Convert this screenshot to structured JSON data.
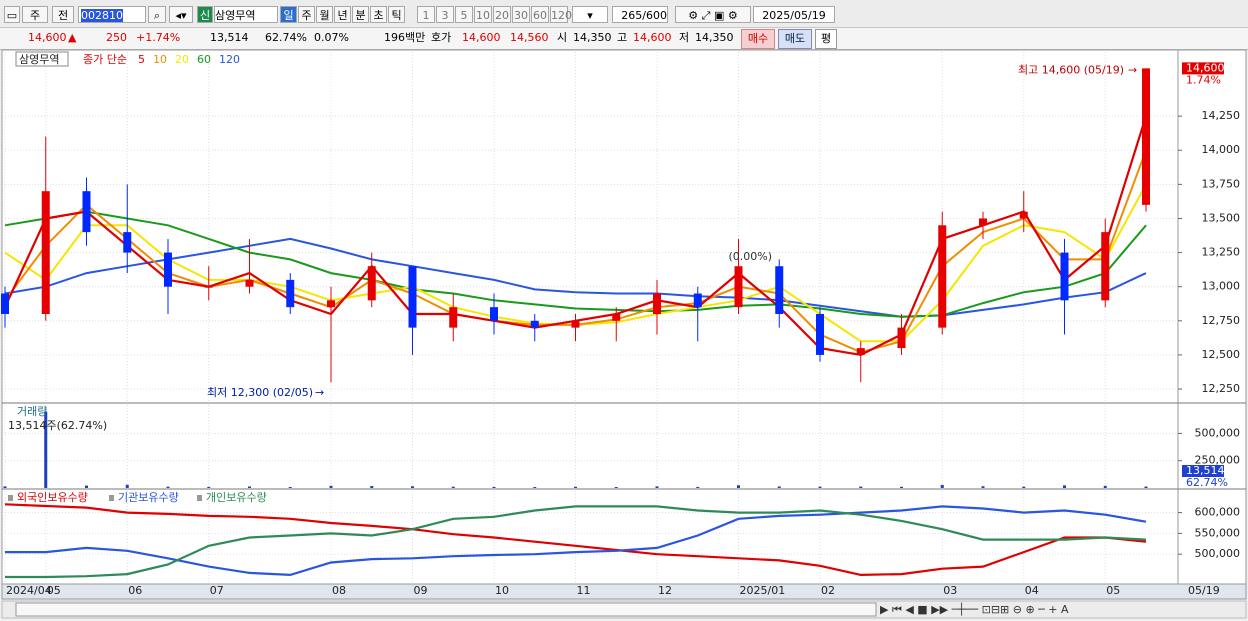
{
  "toolbar": {
    "market": "주",
    "prev": "전",
    "code": "002810",
    "tag": "신",
    "name": "삼영무역",
    "periods": [
      "일",
      "주",
      "월",
      "년",
      "분",
      "초",
      "틱"
    ],
    "units": [
      "1",
      "3",
      "5",
      "10",
      "20",
      "30",
      "60",
      "120"
    ],
    "count": "265",
    "total": "/600",
    "date": "2025/05/19"
  },
  "quote": {
    "price": "14,600",
    "change": "250",
    "change_pct": "+1.74%",
    "volume": "13,514",
    "volume_ratio": "62.74%",
    "turnover_pct": "0.07%",
    "amount": "196백만",
    "ask_label": "호가",
    "ask": "14,600",
    "bid": "14,560",
    "open_label": "시",
    "open": "14,350",
    "high_label": "고",
    "high": "14,600",
    "low_label": "저",
    "low": "14,350",
    "buy": "매수",
    "sell": "매도",
    "avg": "평"
  },
  "chart_data": [
    {
      "type": "candlestick",
      "title": "삼영무역",
      "ma_label": "종가 단순",
      "open": [
        12950,
        12800,
        13700,
        13400,
        13250,
        13000,
        13000,
        13050,
        12850,
        12900,
        13150,
        12700,
        12850,
        12750,
        12700,
        12750,
        12800,
        12950,
        12850,
        13150,
        12800,
        12500,
        12550,
        12700,
        13450,
        13500,
        13250,
        12900,
        13600
      ],
      "high": [
        13000,
        14100,
        13800,
        13750,
        13350,
        13150,
        13350,
        13100,
        13000,
        13250,
        13150,
        12950,
        12950,
        12800,
        12800,
        12850,
        13050,
        13000,
        13350,
        13200,
        12850,
        12600,
        12800,
        13550,
        13550,
        13700,
        13350,
        13500,
        14600
      ],
      "low": [
        12700,
        12750,
        13300,
        13100,
        12800,
        12900,
        12950,
        12800,
        12300,
        12850,
        12500,
        12600,
        12650,
        12600,
        12600,
        12600,
        12650,
        12600,
        12800,
        12700,
        12450,
        12300,
        12500,
        12650,
        13350,
        13400,
        12650,
        12850,
        13550
      ],
      "close": [
        12800,
        13700,
        13400,
        13250,
        13000,
        13000,
        13050,
        12850,
        12900,
        13150,
        12700,
        12850,
        12750,
        12700,
        12750,
        12800,
        12950,
        12850,
        13150,
        12800,
        12500,
        12550,
        12700,
        13450,
        13500,
        13550,
        12900,
        13400,
        14600
      ],
      "up_color": "#e60000",
      "down_color": "#0028ff",
      "series": [
        {
          "name": "5",
          "color": "#e00000",
          "values": [
            12850,
            13500,
            13550,
            13300,
            13050,
            13000,
            13100,
            12900,
            12800,
            13150,
            12800,
            12800,
            12750,
            12700,
            12750,
            12800,
            12900,
            12850,
            13100,
            12850,
            12550,
            12500,
            12650,
            13350,
            13450,
            13550,
            13050,
            13300,
            14250
          ]
        },
        {
          "name": "10",
          "color": "#f08c00",
          "values": [
            12900,
            13300,
            13600,
            13350,
            13100,
            13000,
            13050,
            12950,
            12850,
            13050,
            12950,
            12800,
            12750,
            12720,
            12720,
            12760,
            12850,
            12880,
            13000,
            12950,
            12650,
            12520,
            12600,
            13150,
            13400,
            13500,
            13200,
            13200,
            14000
          ]
        },
        {
          "name": "20",
          "color": "#f5e600",
          "values": [
            13250,
            13050,
            13450,
            13450,
            13200,
            13050,
            13050,
            13000,
            12900,
            12950,
            13000,
            12850,
            12780,
            12730,
            12720,
            12740,
            12800,
            12850,
            12900,
            13000,
            12800,
            12600,
            12600,
            12900,
            13300,
            13450,
            13400,
            13200,
            13750
          ]
        },
        {
          "name": "60",
          "color": "#1a9a1a",
          "values": [
            13450,
            13500,
            13550,
            13500,
            13450,
            13350,
            13250,
            13200,
            13100,
            13050,
            12980,
            12950,
            12900,
            12870,
            12840,
            12830,
            12820,
            12830,
            12860,
            12870,
            12840,
            12800,
            12780,
            12790,
            12880,
            12960,
            13000,
            13100,
            13450
          ]
        },
        {
          "name": "120",
          "color": "#2a55e0",
          "values": [
            12950,
            13000,
            13100,
            13150,
            13200,
            13250,
            13300,
            13350,
            13280,
            13200,
            13150,
            13100,
            13050,
            12980,
            12960,
            12950,
            12950,
            12930,
            12920,
            12900,
            12860,
            12820,
            12780,
            12790,
            12830,
            12870,
            12920,
            12960,
            13100
          ]
        }
      ],
      "ylim": [
        12155,
        14720
      ],
      "yticks": [
        {
          "value": 12250,
          "label": "12,250"
        },
        {
          "value": 12500,
          "label": "12,500"
        },
        {
          "value": 12750,
          "label": "12,750"
        },
        {
          "value": 13000,
          "label": "13,000"
        },
        {
          "value": 13250,
          "label": "13,250"
        },
        {
          "value": 13500,
          "label": "13,500"
        },
        {
          "value": 13750,
          "label": "13,750"
        },
        {
          "value": 14000,
          "label": "14,000"
        },
        {
          "value": 14250,
          "label": "14,250"
        }
      ],
      "grid": true,
      "high_note": "최고 14,600 (05/19)",
      "low_note": "최저 12,300 (02/05)",
      "mid_note": "(0.00%)",
      "current_label": "14,600",
      "current_change": "1.74%"
    },
    {
      "type": "bar",
      "title": "거래량",
      "subtitle": "13,514주(62.74%)",
      "color": "#1a3fc0",
      "values": [
        15000,
        700000,
        22000,
        30000,
        12000,
        10000,
        14000,
        9000,
        20000,
        18000,
        16000,
        12000,
        10000,
        9000,
        11000,
        9000,
        15000,
        10000,
        25000,
        14000,
        12000,
        13000,
        11000,
        28000,
        16000,
        12000,
        24000,
        20000,
        13514
      ],
      "ylim": [
        0,
        760000
      ],
      "yticks": [
        {
          "value": 250000,
          "label": "250,000"
        },
        {
          "value": 500000,
          "label": "500,000"
        }
      ],
      "current_label": "13,514",
      "ratio_label": "62.74%"
    },
    {
      "type": "line",
      "categories": [
        "2024/04",
        "05",
        null,
        "06",
        null,
        "07",
        null,
        null,
        "08",
        null,
        "09",
        null,
        "10",
        null,
        "11",
        null,
        "12",
        null,
        "2025/01",
        null,
        "02",
        null,
        null,
        "03",
        null,
        "04",
        null,
        "05",
        null
      ],
      "end_label": "05/19",
      "series": [
        {
          "name": "외국인보유수량",
          "color": "#e00000",
          "values": [
            620000,
            616000,
            612000,
            600000,
            597000,
            592000,
            590000,
            585000,
            575000,
            568000,
            560000,
            548000,
            540000,
            530000,
            520000,
            510000,
            500000,
            495000,
            490000,
            485000,
            472000,
            450000,
            452000,
            465000,
            470000,
            505000,
            540000,
            540000,
            530000
          ]
        },
        {
          "name": "기관보유수량",
          "color": "#2a55e0",
          "values": [
            505000,
            505000,
            515000,
            508000,
            490000,
            470000,
            455000,
            450000,
            480000,
            488000,
            490000,
            495000,
            498000,
            500000,
            505000,
            508000,
            515000,
            545000,
            585000,
            592000,
            595000,
            600000,
            605000,
            615000,
            610000,
            600000,
            605000,
            595000,
            578000
          ]
        },
        {
          "name": "개인보유수량",
          "color": "#2e8b57",
          "values": [
            445000,
            445000,
            447000,
            452000,
            475000,
            520000,
            540000,
            545000,
            550000,
            545000,
            560000,
            585000,
            590000,
            605000,
            615000,
            615000,
            615000,
            605000,
            600000,
            600000,
            605000,
            595000,
            580000,
            560000,
            535000,
            535000,
            535000,
            540000,
            535000
          ]
        }
      ],
      "ylim": [
        433000,
        652000
      ],
      "yticks": [
        {
          "value": 500000,
          "label": "500,000"
        },
        {
          "value": 550000,
          "label": "550,000"
        },
        {
          "value": 600000,
          "label": "600,000"
        }
      ]
    }
  ]
}
